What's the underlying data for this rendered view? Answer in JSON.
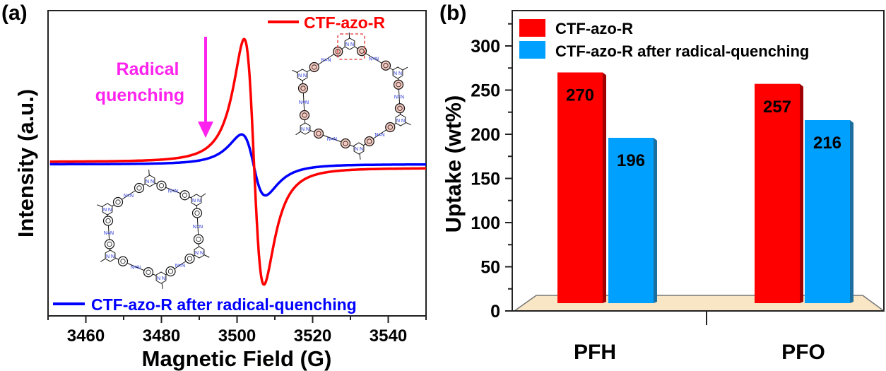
{
  "chart_data": [
    {
      "panel_label": "(a)",
      "type": "line",
      "title": "",
      "xlabel": "Magnetic Field (G)",
      "ylabel": "Intensity (a.u.)",
      "xlim": [
        3450,
        3550
      ],
      "ylim": [
        -1.0,
        1.0
      ],
      "xticks": [
        3460,
        3480,
        3500,
        3520,
        3540
      ],
      "xtick_labels": [
        "3460",
        "3480",
        "3500",
        "3520",
        "3540"
      ],
      "yticks": [],
      "grid": false,
      "series": [
        {
          "name": "CTF-azo-R",
          "color": "#ff0000",
          "baseline_left": 0.0,
          "baseline_right": -0.05,
          "peak": {
            "x": 3501.9,
            "y": 1.0
          },
          "trough": {
            "x": 3507.1,
            "y": -0.95
          },
          "linewidth_class": "thick"
        },
        {
          "name": "CTF-azo-R after radical-quenching",
          "color": "#0000ff",
          "baseline_left": -0.02,
          "baseline_right": -0.02,
          "peak": {
            "x": 3501.2,
            "y": 0.24
          },
          "trough": {
            "x": 3507.5,
            "y": -0.25
          },
          "linewidth_class": "thick"
        }
      ],
      "legend": [
        {
          "label": "CTF-azo-R",
          "color": "#ff0000",
          "placement": "top-right"
        },
        {
          "label": "CTF-azo-R after radical-quenching",
          "color": "#0000ff",
          "placement": "bottom"
        }
      ],
      "annotations": [
        {
          "text_lines": [
            "Radical",
            "quenching"
          ],
          "color": "#ff22ee",
          "arrow": "down",
          "arrow_x": 3492,
          "placement": "upper-left"
        }
      ],
      "insets": [
        {
          "name": "ctf-structure-radical",
          "placement": "upper-right",
          "ring_fill": "#f5c9c0",
          "highlight": "red-dashed-box-top-triazine"
        },
        {
          "name": "ctf-structure-quenched",
          "placement": "lower-left",
          "ring_fill": "#ffffff"
        }
      ]
    },
    {
      "panel_label": "(b)",
      "type": "bar",
      "title": "",
      "xlabel": "",
      "ylabel": "Uptake (wt%)",
      "categories": [
        "PFH",
        "PFO"
      ],
      "ylim": [
        0,
        333
      ],
      "yticks": [
        0,
        50,
        100,
        150,
        200,
        250,
        300
      ],
      "ytick_labels": [
        "0",
        "50",
        "100",
        "150",
        "200",
        "250",
        "300"
      ],
      "grid": false,
      "style": "3d",
      "floor_color": "#f8e6c4",
      "series": [
        {
          "name": "CTF-azo-R",
          "color": "#ff0000",
          "side_color": "#a00000",
          "values": [
            270,
            257
          ],
          "labels": [
            "270",
            "257"
          ]
        },
        {
          "name": "CTF-azo-R after radical-quenching",
          "color": "#00a0ff",
          "side_color": "#1a6fa0",
          "values": [
            196,
            216
          ],
          "labels": [
            "196",
            "216"
          ]
        }
      ],
      "legend": {
        "placement": "top-left",
        "entries": [
          "CTF-azo-R",
          "CTF-azo-R after radical-quenching"
        ]
      }
    }
  ]
}
